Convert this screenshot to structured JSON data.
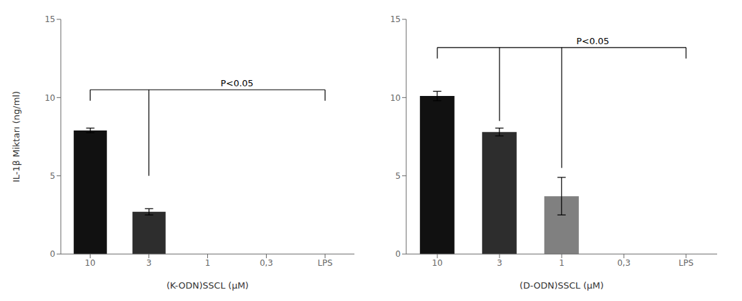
{
  "chart_data": [
    {
      "type": "bar",
      "categories": [
        "10",
        "3",
        "1",
        "0,3",
        "LPS"
      ],
      "values": [
        7.9,
        2.7,
        0,
        0,
        0
      ],
      "errors": [
        0.15,
        0.2,
        0,
        0,
        0
      ],
      "colors": [
        "#111111",
        "#2d2d2d",
        "#111111",
        "#111111",
        "#111111"
      ],
      "xlabel": "(K-ODN)SSCL (μM)",
      "ylabel": "IL-1β Miktarı (ng/ml)",
      "ylim": [
        0,
        15
      ],
      "yticks": [
        0,
        5,
        10,
        15
      ],
      "bracket": {
        "text": "P<0.05",
        "y": 10.5,
        "from": "10",
        "to": "LPS",
        "drops": [
          {
            "category": "10",
            "to": 9.8
          },
          {
            "category": "3",
            "to": 5.0
          },
          {
            "category": "LPS",
            "to": 9.8
          }
        ]
      }
    },
    {
      "type": "bar",
      "categories": [
        "10",
        "3",
        "1",
        "0,3",
        "LPS"
      ],
      "values": [
        10.1,
        7.8,
        3.7,
        0,
        0
      ],
      "errors": [
        0.3,
        0.25,
        1.2,
        0,
        0
      ],
      "colors": [
        "#111111",
        "#2d2d2d",
        "#808080",
        "#111111",
        "#111111"
      ],
      "xlabel": "(D-ODN)SSCL (μM)",
      "ylim": [
        0,
        15
      ],
      "yticks": [
        0,
        5,
        10,
        15
      ],
      "bracket": {
        "text": "P<0.05",
        "y": 13.2,
        "from": "10",
        "to": "LPS",
        "drops": [
          {
            "category": "10",
            "to": 12.5
          },
          {
            "category": "3",
            "to": 8.5
          },
          {
            "category": "1",
            "to": 5.5
          },
          {
            "category": "LPS",
            "to": 12.5
          }
        ]
      }
    }
  ]
}
